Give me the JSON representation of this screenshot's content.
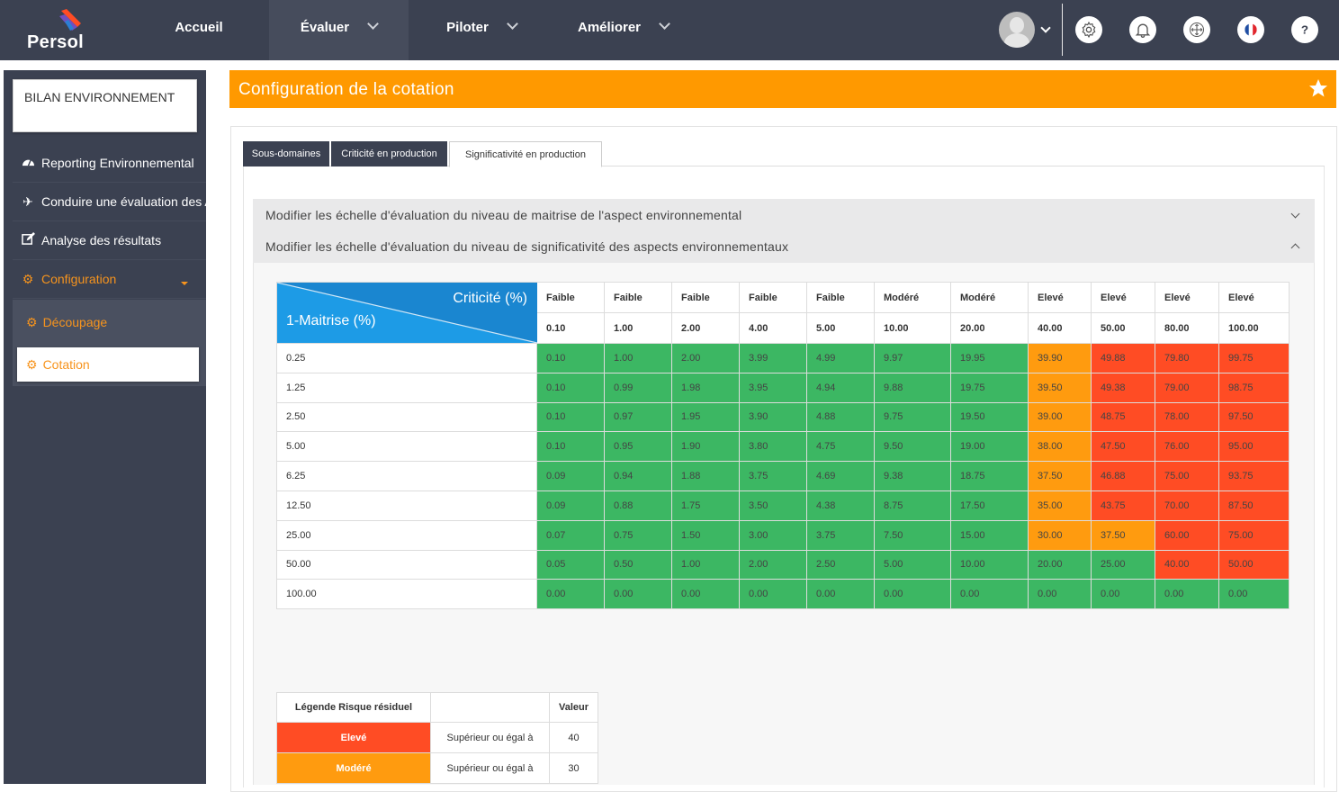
{
  "app": {
    "logo_text": "Persol"
  },
  "nav": {
    "items": [
      {
        "label": "Accueil",
        "has_dropdown": false
      },
      {
        "label": "Évaluer",
        "has_dropdown": true
      },
      {
        "label": "Piloter",
        "has_dropdown": true
      },
      {
        "label": "Améliorer",
        "has_dropdown": true
      }
    ],
    "icons": [
      "avatar",
      "gear-icon",
      "bell-icon",
      "move-icon",
      "flag-fr-icon",
      "help-icon"
    ]
  },
  "sidebar": {
    "title": "BILAN ENVIRONNEMENT",
    "items": [
      {
        "label": "Reporting Environnemental",
        "icon": "dashboard-icon"
      },
      {
        "label": "Conduire une évaluation des AE",
        "icon": "plane-icon"
      },
      {
        "label": "Analyse des résultats",
        "icon": "edit-icon"
      },
      {
        "label": "Configuration",
        "icon": "cogs-icon"
      }
    ],
    "sub_items": [
      {
        "label": "Découpage",
        "icon": "cogs-icon"
      },
      {
        "label": "Cotation",
        "icon": "cogs-icon"
      }
    ]
  },
  "page": {
    "title": "Configuration de la cotation",
    "tabs": [
      "Sous-domaines",
      "Criticité en production",
      "Significativité en production"
    ],
    "active_tab": "Significativité en production",
    "accordions": [
      "Modifier les échelle d'évaluation du niveau de maitrise de l'aspect environnemental",
      "Modifier les échelle d'évaluation du niveau de significativité des aspects environnementaux"
    ]
  },
  "matrix": {
    "corner_top": "Criticité (%)",
    "corner_bottom": "1-Maitrise (%)",
    "levels": [
      "Faible",
      "Faible",
      "Faible",
      "Faible",
      "Faible",
      "Modéré",
      "Modéré",
      "Elevé",
      "Elevé",
      "Elevé",
      "Elevé"
    ],
    "criticites": [
      "0.10",
      "1.00",
      "2.00",
      "4.00",
      "5.00",
      "10.00",
      "20.00",
      "40.00",
      "50.00",
      "80.00",
      "100.00"
    ],
    "rows": [
      {
        "label": "0.25",
        "values": [
          "0.10",
          "1.00",
          "2.00",
          "3.99",
          "4.99",
          "9.97",
          "19.95",
          "39.90",
          "49.88",
          "79.80",
          "99.75"
        ]
      },
      {
        "label": "1.25",
        "values": [
          "0.10",
          "0.99",
          "1.98",
          "3.95",
          "4.94",
          "9.88",
          "19.75",
          "39.50",
          "49.38",
          "79.00",
          "98.75"
        ]
      },
      {
        "label": "2.50",
        "values": [
          "0.10",
          "0.97",
          "1.95",
          "3.90",
          "4.88",
          "9.75",
          "19.50",
          "39.00",
          "48.75",
          "78.00",
          "97.50"
        ]
      },
      {
        "label": "5.00",
        "values": [
          "0.10",
          "0.95",
          "1.90",
          "3.80",
          "4.75",
          "9.50",
          "19.00",
          "38.00",
          "47.50",
          "76.00",
          "95.00"
        ]
      },
      {
        "label": "6.25",
        "values": [
          "0.09",
          "0.94",
          "1.88",
          "3.75",
          "4.69",
          "9.38",
          "18.75",
          "37.50",
          "46.88",
          "75.00",
          "93.75"
        ]
      },
      {
        "label": "12.50",
        "values": [
          "0.09",
          "0.88",
          "1.75",
          "3.50",
          "4.38",
          "8.75",
          "17.50",
          "35.00",
          "43.75",
          "70.00",
          "87.50"
        ]
      },
      {
        "label": "25.00",
        "values": [
          "0.07",
          "0.75",
          "1.50",
          "3.00",
          "3.75",
          "7.50",
          "15.00",
          "30.00",
          "37.50",
          "60.00",
          "75.00"
        ]
      },
      {
        "label": "50.00",
        "values": [
          "0.05",
          "0.50",
          "1.00",
          "2.00",
          "2.50",
          "5.00",
          "10.00",
          "20.00",
          "25.00",
          "40.00",
          "50.00"
        ]
      },
      {
        "label": "100.00",
        "values": [
          "0.00",
          "0.00",
          "0.00",
          "0.00",
          "0.00",
          "0.00",
          "0.00",
          "0.00",
          "0.00",
          "0.00",
          "0.00"
        ]
      }
    ],
    "thresholds": {
      "high": 40,
      "moderate": 30
    },
    "colors": {
      "low": "#3cb763",
      "moderate": "#ff9b0f",
      "high": "#ff4c24"
    }
  },
  "legend": {
    "header": "Légende Risque résiduel",
    "value_header": "Valeur",
    "rows": [
      {
        "label": "Elevé",
        "condition": "Supérieur ou égal à",
        "value": "40",
        "color": "#ff4c24"
      },
      {
        "label": "Modéré",
        "condition": "Supérieur ou égal à",
        "value": "30",
        "color": "#ff9b0f"
      }
    ]
  }
}
